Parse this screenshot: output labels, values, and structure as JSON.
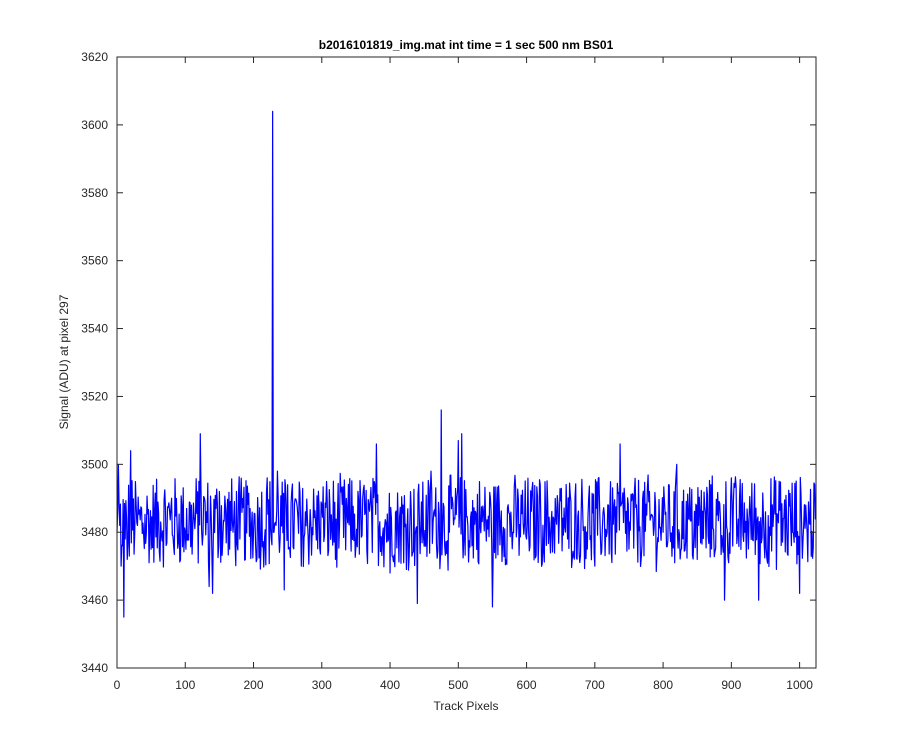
{
  "chart_data": {
    "type": "line",
    "title": "b2016101819_img.mat int time = 1 sec  500 nm BS01",
    "xlabel": "Track Pixels",
    "ylabel": "Signal (ADU) at pixel 297",
    "xlim": [
      0,
      1024
    ],
    "ylim": [
      3440,
      3620
    ],
    "xticks": [
      0,
      100,
      200,
      300,
      400,
      500,
      600,
      700,
      800,
      900,
      1000
    ],
    "yticks": [
      3440,
      3460,
      3480,
      3500,
      3520,
      3540,
      3560,
      3580,
      3600,
      3620
    ],
    "xtick_labels": [
      "0",
      "100",
      "200",
      "300",
      "400",
      "500",
      "600",
      "700",
      "800",
      "900",
      "1000"
    ],
    "ytick_labels": [
      "3440",
      "3460",
      "3480",
      "3500",
      "3520",
      "3540",
      "3560",
      "3580",
      "3600",
      "3620"
    ],
    "grid": false,
    "legend": "none",
    "series": [
      {
        "color": "#0000ff",
        "x": [
          0,
          2,
          4,
          6,
          8,
          10,
          12,
          15,
          20,
          30,
          50,
          80,
          100,
          120,
          122,
          135,
          140,
          150,
          170,
          180,
          200,
          220,
          226,
          228,
          230,
          235,
          245,
          250,
          270,
          300,
          320,
          350,
          380,
          400,
          420,
          440,
          460,
          475,
          480,
          500,
          505,
          520,
          540,
          550,
          580,
          600,
          620,
          640,
          660,
          680,
          700,
          720,
          737,
          750,
          780,
          800,
          820,
          850,
          870,
          890,
          900,
          920,
          940,
          950,
          970,
          990,
          1000,
          1010,
          1024
        ],
        "y": [
          3480,
          3500,
          3482,
          3470,
          3476,
          3455,
          3478,
          3472,
          3504,
          3482,
          3475,
          3490,
          3480,
          3495,
          3509,
          3464,
          3462,
          3492,
          3480,
          3478,
          3480,
          3496,
          3478,
          3604,
          3480,
          3498,
          3463,
          3494,
          3470,
          3488,
          3472,
          3476,
          3506,
          3468,
          3471,
          3459,
          3498,
          3516,
          3476,
          3507,
          3509,
          3476,
          3484,
          3458,
          3480,
          3478,
          3494,
          3484,
          3478,
          3486,
          3470,
          3488,
          3506,
          3475,
          3492,
          3480,
          3500,
          3472,
          3494,
          3460,
          3496,
          3480,
          3460,
          3486,
          3495,
          3480,
          3462,
          3484,
          3484
        ]
      }
    ],
    "noise_band": [
      3468,
      3498
    ]
  }
}
